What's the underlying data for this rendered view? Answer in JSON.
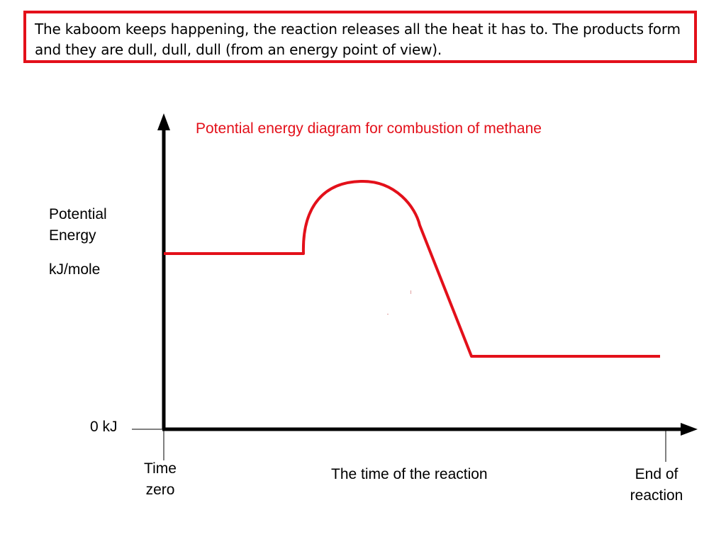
{
  "callout": {
    "text": "The kaboom keeps happening, the reaction releases all the heat it has to.  The products form and they are dull, dull, dull (from an energy point of view)."
  },
  "diagram": {
    "title": "Potential energy diagram for combustion of methane",
    "y_axis_label_line1": "Potential",
    "y_axis_label_line2": "Energy",
    "y_axis_units": "kJ/mole",
    "origin_label": "0 kJ",
    "x_start_label_line1": "Time",
    "x_start_label_line2": "zero",
    "x_axis_label": "The time of the reaction",
    "x_end_label_line1": "End of",
    "x_end_label_line2": "reaction",
    "curve_color": "#e3101a",
    "axis_color": "#000000",
    "title_color": "#e3101a",
    "callout_border_color": "#e3101a"
  }
}
